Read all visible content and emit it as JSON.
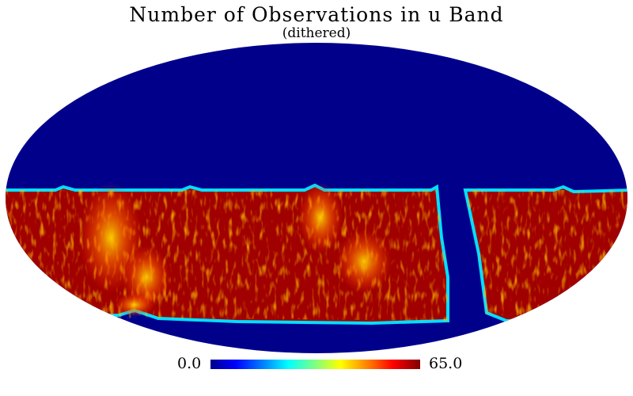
{
  "map": {
    "title": "Number of Observations in u Band",
    "subtitle": "(dithered)",
    "projection": "mollweide",
    "colormap": "jet",
    "background_color": "#00008b",
    "dense_color": "#a00000"
  },
  "colorbar": {
    "min_label": "0.0",
    "max_label": "65.0"
  }
}
